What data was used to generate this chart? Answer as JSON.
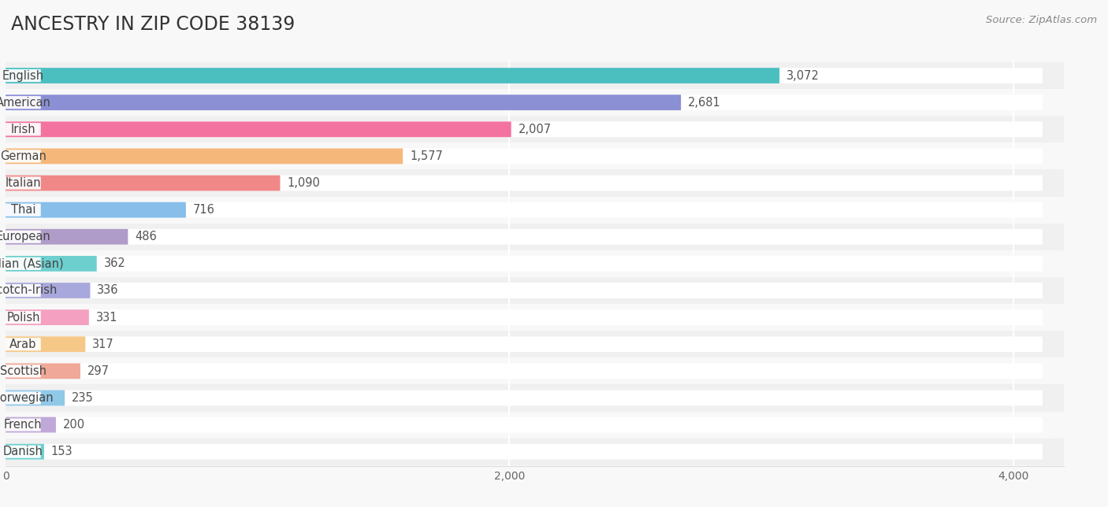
{
  "title": "ANCESTRY IN ZIP CODE 38139",
  "source": "Source: ZipAtlas.com",
  "categories": [
    "English",
    "American",
    "Irish",
    "German",
    "Italian",
    "Thai",
    "European",
    "Indian (Asian)",
    "Scotch-Irish",
    "Polish",
    "Arab",
    "Scottish",
    "Norwegian",
    "French",
    "Danish"
  ],
  "values": [
    3072,
    2681,
    2007,
    1577,
    1090,
    716,
    486,
    362,
    336,
    331,
    317,
    297,
    235,
    200,
    153
  ],
  "colors": [
    "#4BBFC0",
    "#8B8FD4",
    "#F472A0",
    "#F5B87A",
    "#F08888",
    "#87BEEA",
    "#B09CC8",
    "#6ECFCF",
    "#A8A8DC",
    "#F4A0C0",
    "#F5C888",
    "#F0A898",
    "#90C8E8",
    "#C0A8D8",
    "#6ECFCF"
  ],
  "xlim": [
    0,
    4200
  ],
  "xticks": [
    0,
    2000,
    4000
  ],
  "bg_even": "#f0f0f0",
  "bg_odd": "#f8f8f8",
  "track_color": "#ffffff",
  "pill_color": "#ffffff",
  "title_fontsize": 17,
  "label_fontsize": 10.5,
  "value_fontsize": 10.5,
  "source_fontsize": 9.5
}
